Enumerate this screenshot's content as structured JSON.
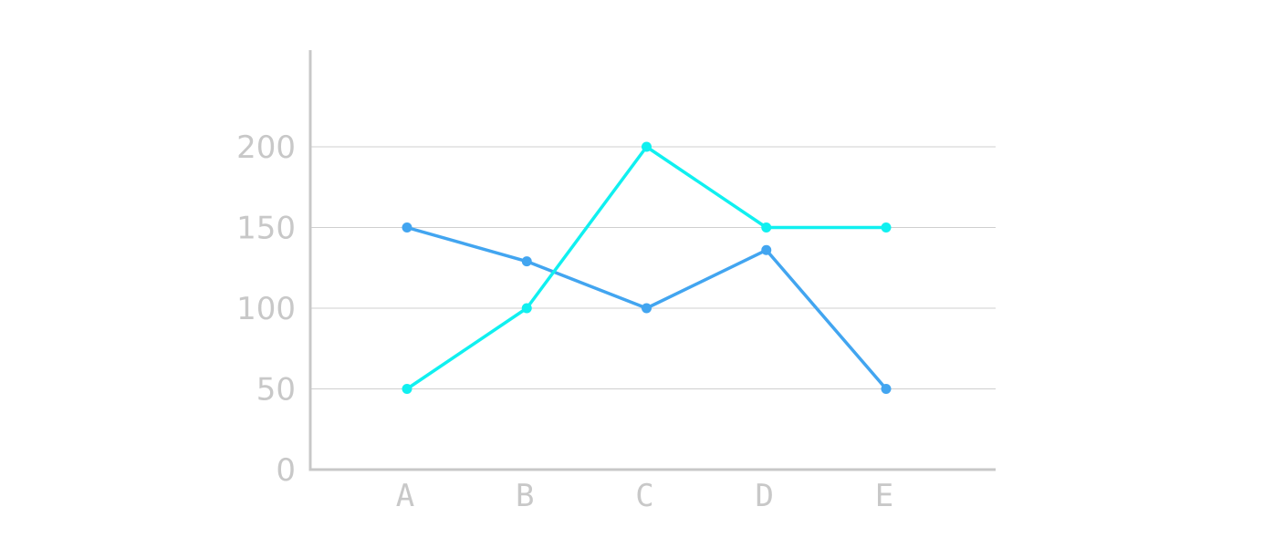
{
  "chart_data": {
    "type": "line",
    "title": "",
    "xlabel": "",
    "ylabel": "",
    "categories": [
      "A",
      "B",
      "C",
      "D",
      "E"
    ],
    "y_ticks": [
      0,
      50,
      100,
      150,
      200
    ],
    "ylim": [
      0,
      200
    ],
    "grid": true,
    "legend": "none",
    "series": [
      {
        "values": [
          150,
          129,
          100,
          136,
          50
        ],
        "color": "#42a5f0"
      },
      {
        "values": [
          50,
          100,
          200,
          150,
          150
        ],
        "color": "#10f0f0"
      }
    ]
  }
}
